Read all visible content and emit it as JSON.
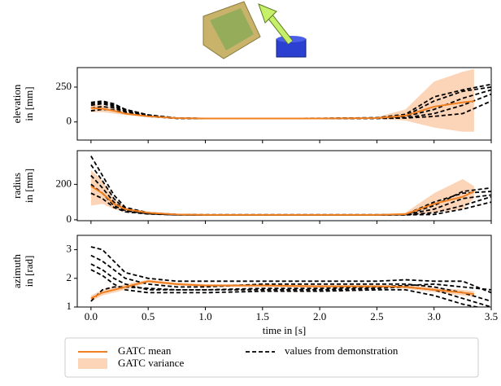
{
  "chart_data": [
    {
      "type": "line",
      "ylabel": [
        "elevation",
        "in [mm]"
      ],
      "ylim": [
        -130,
        390
      ],
      "yticks": [
        0,
        250
      ],
      "x": [
        0,
        0.1,
        0.2,
        0.3,
        0.5,
        0.75,
        1,
        1.5,
        2,
        2.5,
        2.75,
        3,
        3.25,
        3.5
      ],
      "mean": {
        "name": "GATC mean",
        "color": "#f07f20",
        "x": [
          0,
          0.1,
          0.2,
          0.3,
          0.5,
          0.75,
          1,
          1.5,
          2,
          2.5,
          2.75,
          3,
          3.25,
          3.35
        ],
        "values": [
          100,
          95,
          80,
          60,
          40,
          28,
          25,
          25,
          25,
          28,
          45,
          110,
          140,
          150
        ]
      },
      "band": {
        "name": "GATC variance",
        "color": "#fcd5b8",
        "upper": [
          130,
          120,
          100,
          70,
          45,
          30,
          27,
          27,
          27,
          35,
          90,
          290,
          360,
          380
        ],
        "lower": [
          70,
          70,
          60,
          50,
          35,
          26,
          23,
          23,
          23,
          22,
          10,
          -40,
          -70,
          -70
        ]
      },
      "series": [
        {
          "name": "values from demonstration",
          "color": "#000000",
          "values": [
            140,
            150,
            130,
            90,
            50,
            28,
            25,
            25,
            25,
            28,
            40,
            90,
            170,
            230
          ]
        },
        {
          "color": "#000000",
          "values": [
            120,
            130,
            110,
            80,
            45,
            27,
            25,
            25,
            25,
            30,
            45,
            150,
            220,
            250
          ]
        },
        {
          "color": "#000000",
          "values": [
            100,
            110,
            100,
            75,
            40,
            26,
            24,
            24,
            24,
            26,
            30,
            60,
            120,
            200
          ]
        },
        {
          "color": "#000000",
          "values": [
            80,
            90,
            85,
            65,
            40,
            26,
            24,
            24,
            24,
            25,
            28,
            40,
            60,
            150
          ]
        },
        {
          "color": "#000000",
          "values": [
            130,
            140,
            120,
            90,
            50,
            28,
            25,
            25,
            26,
            30,
            55,
            180,
            230,
            270
          ]
        }
      ]
    },
    {
      "type": "line",
      "ylabel": [
        "radius",
        "in [mm]"
      ],
      "ylim": [
        -5,
        390
      ],
      "yticks": [
        0,
        200
      ],
      "x": [
        0,
        0.1,
        0.2,
        0.3,
        0.5,
        0.75,
        1,
        1.5,
        2,
        2.5,
        2.75,
        3,
        3.25,
        3.5
      ],
      "mean": {
        "color": "#f07f20",
        "x": [
          0,
          0.1,
          0.2,
          0.3,
          0.5,
          0.75,
          1,
          1.5,
          2,
          2.5,
          2.75,
          3,
          3.25,
          3.35
        ],
        "values": [
          190,
          150,
          90,
          60,
          40,
          30,
          28,
          28,
          28,
          28,
          32,
          90,
          130,
          160
        ]
      },
      "band": {
        "color": "#fcd5b8",
        "upper": [
          280,
          220,
          120,
          70,
          45,
          32,
          30,
          30,
          30,
          30,
          40,
          150,
          230,
          190
        ],
        "lower": [
          80,
          90,
          60,
          45,
          35,
          28,
          26,
          26,
          26,
          26,
          25,
          40,
          60,
          120
        ]
      },
      "series": [
        {
          "color": "#000000",
          "values": [
            360,
            250,
            140,
            70,
            40,
            30,
            28,
            28,
            28,
            28,
            30,
            100,
            150,
            160
          ]
        },
        {
          "color": "#000000",
          "values": [
            310,
            220,
            120,
            60,
            38,
            30,
            28,
            28,
            28,
            28,
            30,
            60,
            120,
            140
          ]
        },
        {
          "color": "#000000",
          "values": [
            250,
            180,
            100,
            55,
            35,
            28,
            27,
            27,
            27,
            27,
            28,
            40,
            80,
            130
          ]
        },
        {
          "color": "#000000",
          "values": [
            200,
            150,
            80,
            50,
            35,
            28,
            27,
            27,
            27,
            27,
            28,
            30,
            60,
            100
          ]
        },
        {
          "color": "#000000",
          "values": [
            150,
            120,
            70,
            45,
            33,
            28,
            27,
            27,
            27,
            27,
            30,
            80,
            160,
            180
          ]
        }
      ]
    },
    {
      "type": "line",
      "ylabel": [
        "azimuth",
        "in [rad]"
      ],
      "ylim": [
        1,
        3.5
      ],
      "yticks": [
        1,
        2,
        3
      ],
      "xlabel": "time in [s]",
      "xlim": [
        -0.12,
        3.5
      ],
      "xticks": [
        {
          "value": 0,
          "label": "0.0"
        },
        {
          "value": 0.5,
          "label": "0.5"
        },
        {
          "value": 1,
          "label": "1.0"
        },
        {
          "value": 1.5,
          "label": "1.5"
        },
        {
          "value": 2,
          "label": "2.0"
        },
        {
          "value": 2.5,
          "label": "2.5"
        },
        {
          "value": 3,
          "label": "3.0"
        },
        {
          "value": 3.5,
          "label": "3.5"
        }
      ],
      "x": [
        0,
        0.1,
        0.2,
        0.3,
        0.5,
        0.75,
        1,
        1.5,
        2,
        2.5,
        2.75,
        3,
        3.25,
        3.5
      ],
      "mean": {
        "color": "#f07f20",
        "x": [
          0,
          0.1,
          0.2,
          0.3,
          0.5,
          0.75,
          1,
          1.5,
          2,
          2.5,
          2.75,
          3,
          3.25,
          3.35
        ],
        "values": [
          1.3,
          1.5,
          1.6,
          1.7,
          1.9,
          1.8,
          1.75,
          1.75,
          1.72,
          1.72,
          1.7,
          1.6,
          1.5,
          1.45
        ]
      },
      "band": {
        "color": "#fcd5b8",
        "upper": [
          1.4,
          1.6,
          1.7,
          1.8,
          1.95,
          1.85,
          1.8,
          1.8,
          1.77,
          1.77,
          1.76,
          1.68,
          1.6,
          1.55
        ],
        "lower": [
          1.2,
          1.4,
          1.5,
          1.6,
          1.85,
          1.75,
          1.7,
          1.7,
          1.67,
          1.67,
          1.64,
          1.52,
          1.4,
          1.35
        ]
      },
      "series": [
        {
          "color": "#000000",
          "values": [
            3.1,
            3.0,
            2.6,
            2.2,
            2.0,
            1.9,
            1.9,
            1.9,
            1.9,
            1.9,
            1.95,
            1.9,
            1.9,
            1.5
          ]
        },
        {
          "color": "#000000",
          "values": [
            2.8,
            2.6,
            2.3,
            2.0,
            1.8,
            1.7,
            1.7,
            1.8,
            1.8,
            1.8,
            1.8,
            1.7,
            1.5,
            1.2
          ]
        },
        {
          "color": "#000000",
          "values": [
            2.5,
            2.3,
            2.0,
            1.8,
            1.6,
            1.6,
            1.6,
            1.6,
            1.6,
            1.65,
            1.7,
            1.6,
            1.3,
            1.0
          ]
        },
        {
          "color": "#000000",
          "values": [
            2.3,
            2.1,
            1.8,
            1.6,
            1.5,
            1.5,
            1.5,
            1.55,
            1.55,
            1.6,
            1.6,
            1.4,
            1.1,
            0.9
          ]
        },
        {
          "color": "#000000",
          "values": [
            1.2,
            1.6,
            1.7,
            1.7,
            1.65,
            1.6,
            1.6,
            1.65,
            1.65,
            1.7,
            1.75,
            1.8,
            1.7,
            1.6
          ]
        }
      ]
    }
  ]
}
